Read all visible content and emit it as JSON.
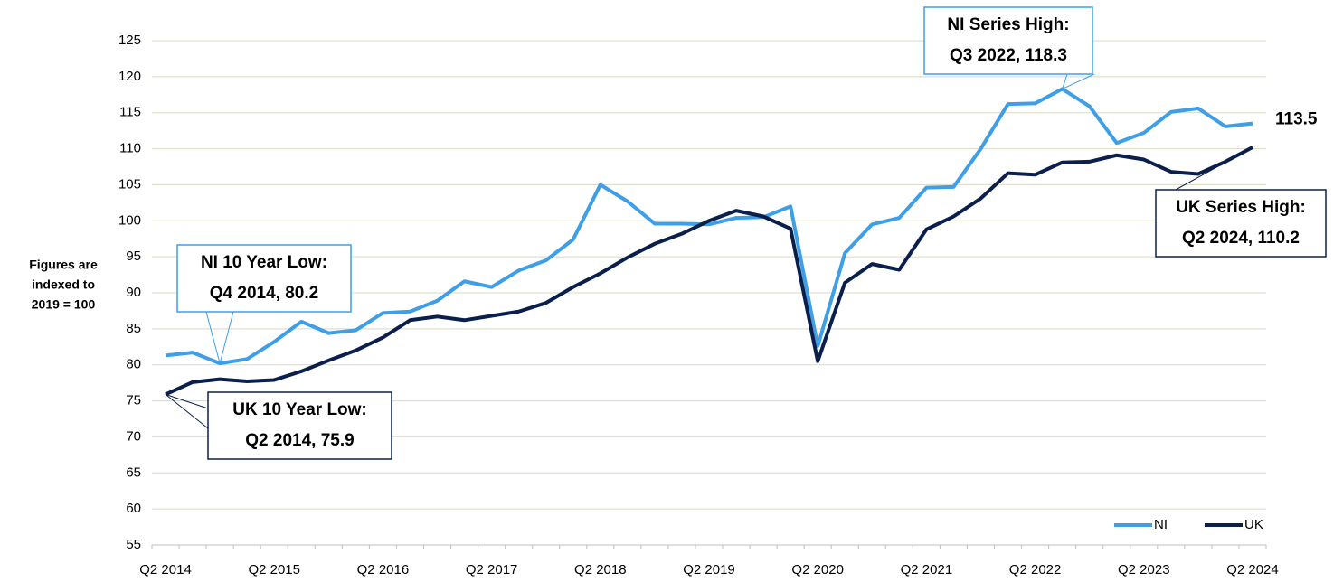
{
  "chart_data": {
    "type": "line",
    "y_label": [
      "Figures are",
      "indexed to",
      "2019 = 100"
    ],
    "categories": [
      "Q2 2014",
      null,
      null,
      null,
      "Q2 2015",
      null,
      null,
      null,
      "Q2 2016",
      null,
      null,
      null,
      "Q2 2017",
      null,
      null,
      null,
      "Q2 2018",
      null,
      null,
      null,
      "Q2 2019",
      null,
      null,
      null,
      "Q2 2020",
      null,
      null,
      null,
      "Q2 2021",
      null,
      null,
      null,
      "Q2 2022",
      null,
      null,
      null,
      "Q2 2023",
      null,
      null,
      null,
      "Q2 2024"
    ],
    "series": [
      {
        "name": "NI",
        "color": "#3f9fe6",
        "values": [
          81.3,
          81.7,
          80.2,
          80.8,
          83.2,
          86.0,
          84.4,
          84.8,
          87.2,
          87.4,
          88.9,
          91.6,
          90.8,
          93.1,
          94.5,
          97.4,
          105.0,
          102.7,
          99.6,
          99.6,
          99.5,
          100.4,
          100.5,
          102.0,
          82.6,
          95.5,
          99.5,
          100.4,
          104.6,
          104.7,
          110.0,
          116.2,
          116.3,
          118.3,
          115.9,
          110.8,
          112.2,
          115.1,
          115.6,
          113.1,
          113.5
        ]
      },
      {
        "name": "UK",
        "color": "#0b1f4d",
        "values": [
          75.9,
          77.6,
          78.0,
          77.7,
          77.9,
          79.1,
          80.6,
          82.0,
          83.8,
          86.2,
          86.7,
          86.2,
          86.8,
          87.4,
          88.6,
          90.8,
          92.7,
          94.9,
          96.8,
          98.2,
          100.0,
          101.4,
          100.6,
          98.9,
          80.5,
          91.4,
          94.0,
          93.2,
          98.8,
          100.6,
          103.1,
          106.6,
          106.4,
          108.1,
          108.2,
          109.1,
          108.5,
          106.8,
          106.5,
          108.2,
          110.2
        ]
      }
    ],
    "annotations": [
      {
        "series": "NI",
        "lines": [
          "NI Series High:",
          "Q3 2022, 118.3"
        ]
      },
      {
        "series": "UK",
        "lines": [
          "UK Series High:",
          "Q2 2024, 110.2"
        ]
      },
      {
        "series": "NI",
        "lines": [
          "NI 10 Year Low:",
          "Q4 2014, 80.2"
        ]
      },
      {
        "series": "UK",
        "lines": [
          "UK 10 Year Low:",
          "Q2 2014, 75.9"
        ]
      }
    ],
    "ylim": [
      55,
      125
    ],
    "yticks": [
      55,
      60,
      65,
      70,
      75,
      80,
      85,
      90,
      95,
      100,
      105,
      110,
      115,
      120,
      125
    ],
    "grid": true,
    "legend": "lower right"
  }
}
